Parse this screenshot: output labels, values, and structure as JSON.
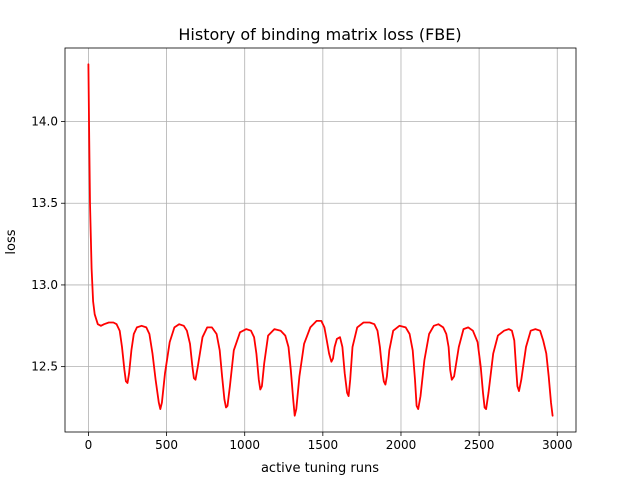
{
  "chart_data": {
    "type": "line",
    "title": "History of binding matrix loss (FBE)",
    "xlabel": "active tuning runs",
    "ylabel": "loss",
    "xlim": [
      -150,
      3120
    ],
    "ylim": [
      12.1,
      14.45
    ],
    "xticks": [
      0,
      500,
      1000,
      1500,
      2000,
      2500,
      3000
    ],
    "xtick_labels": [
      "0",
      "500",
      "1000",
      "1500",
      "2000",
      "2500",
      "3000"
    ],
    "yticks": [
      12.5,
      13.0,
      13.5,
      14.0
    ],
    "ytick_labels": [
      "12.5",
      "13.0",
      "13.5",
      "14.0"
    ],
    "grid": true,
    "series": [
      {
        "color": "#ff0000",
        "x": [
          0,
          5,
          10,
          20,
          30,
          40,
          60,
          80,
          100,
          130,
          160,
          180,
          200,
          215,
          230,
          240,
          250,
          260,
          275,
          290,
          310,
          340,
          370,
          390,
          410,
          430,
          450,
          460,
          470,
          490,
          520,
          550,
          580,
          610,
          630,
          650,
          665,
          675,
          685,
          700,
          730,
          760,
          790,
          820,
          840,
          855,
          870,
          880,
          890,
          905,
          930,
          970,
          1010,
          1040,
          1060,
          1075,
          1090,
          1100,
          1110,
          1125,
          1150,
          1190,
          1230,
          1260,
          1280,
          1295,
          1310,
          1320,
          1330,
          1350,
          1380,
          1420,
          1460,
          1490,
          1510,
          1525,
          1540,
          1555,
          1565,
          1575,
          1590,
          1610,
          1625,
          1640,
          1655,
          1665,
          1675,
          1690,
          1720,
          1760,
          1800,
          1830,
          1850,
          1865,
          1880,
          1890,
          1900,
          1910,
          1925,
          1950,
          1990,
          2030,
          2055,
          2075,
          2090,
          2100,
          2110,
          2125,
          2150,
          2180,
          2210,
          2240,
          2270,
          2290,
          2305,
          2315,
          2325,
          2340,
          2370,
          2400,
          2430,
          2460,
          2490,
          2510,
          2525,
          2535,
          2545,
          2560,
          2590,
          2620,
          2660,
          2690,
          2710,
          2725,
          2735,
          2745,
          2755,
          2770,
          2800,
          2830,
          2860,
          2890,
          2910,
          2930,
          2945,
          2960,
          2970
        ],
        "y": [
          14.35,
          13.9,
          13.5,
          13.1,
          12.9,
          12.82,
          12.76,
          12.75,
          12.76,
          12.77,
          12.77,
          12.76,
          12.72,
          12.62,
          12.48,
          12.41,
          12.4,
          12.46,
          12.6,
          12.7,
          12.74,
          12.75,
          12.74,
          12.7,
          12.58,
          12.42,
          12.28,
          12.24,
          12.28,
          12.46,
          12.65,
          12.74,
          12.76,
          12.75,
          12.72,
          12.64,
          12.5,
          12.43,
          12.42,
          12.5,
          12.68,
          12.74,
          12.74,
          12.7,
          12.6,
          12.44,
          12.3,
          12.25,
          12.26,
          12.38,
          12.6,
          12.71,
          12.73,
          12.72,
          12.68,
          12.58,
          12.42,
          12.36,
          12.38,
          12.52,
          12.69,
          12.73,
          12.72,
          12.69,
          12.62,
          12.48,
          12.3,
          12.2,
          12.24,
          12.44,
          12.64,
          12.74,
          12.78,
          12.78,
          12.74,
          12.66,
          12.58,
          12.53,
          12.55,
          12.62,
          12.67,
          12.68,
          12.62,
          12.46,
          12.34,
          12.32,
          12.42,
          12.62,
          12.74,
          12.77,
          12.77,
          12.76,
          12.72,
          12.62,
          12.48,
          12.41,
          12.39,
          12.44,
          12.6,
          12.72,
          12.75,
          12.74,
          12.7,
          12.6,
          12.42,
          12.26,
          12.24,
          12.32,
          12.54,
          12.7,
          12.75,
          12.76,
          12.74,
          12.7,
          12.62,
          12.48,
          12.42,
          12.44,
          12.62,
          12.73,
          12.74,
          12.72,
          12.65,
          12.5,
          12.34,
          12.25,
          12.24,
          12.34,
          12.58,
          12.69,
          12.72,
          12.73,
          12.72,
          12.66,
          12.52,
          12.38,
          12.35,
          12.42,
          12.62,
          12.72,
          12.73,
          12.72,
          12.66,
          12.58,
          12.44,
          12.28,
          12.2
        ]
      }
    ]
  }
}
